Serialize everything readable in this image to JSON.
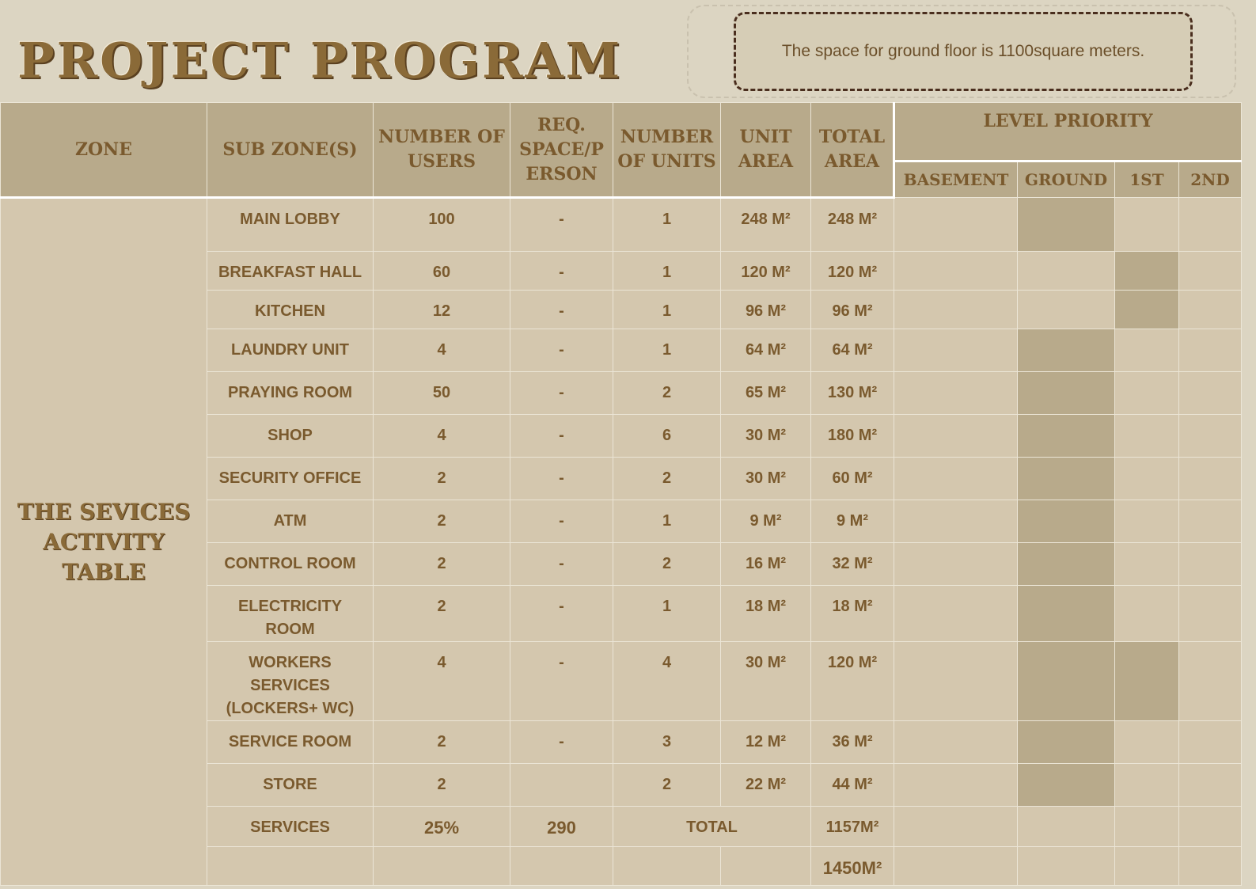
{
  "title": "PROJECT PROGRAM",
  "note": "The space for ground floor is 1100square meters.",
  "headers": {
    "zone": "ZONE",
    "sub_zone": "SUB ZONE(S)",
    "number_of_users": "NUMBER OF USERS",
    "req_space": "REQ. SPACE/P ERSON",
    "number_of_units": "NUMBER OF UNITS",
    "unit_area": "UNIT AREA",
    "total_area": "TOTAL AREA",
    "level_priority": "LEVEL PRIORITY",
    "levels": [
      "BASEMENT",
      "GROUND",
      "1ST",
      "2ND"
    ]
  },
  "zone_name": "THE SEVICES ACTIVITY TABLE",
  "colors": {
    "shade": "#b8aa8b",
    "cell": "#d4c7ae",
    "text": "#7a5a2e"
  },
  "rows": [
    {
      "sub": "MAIN LOBBY",
      "users": "100",
      "req": "-",
      "units": "1",
      "unit_area": "248 M²",
      "total": "248 M²",
      "levels": [
        "",
        "x",
        "",
        ""
      ]
    },
    {
      "sub": "BREAKFAST HALL",
      "users": "60",
      "req": "-",
      "units": "1",
      "unit_area": "120 M²",
      "total": "120 M²",
      "levels": [
        "",
        "",
        "x",
        ""
      ]
    },
    {
      "sub": "KITCHEN",
      "users": "12",
      "req": "-",
      "units": "1",
      "unit_area": "96 M²",
      "total": "96 M²",
      "levels": [
        "",
        "",
        "x",
        ""
      ]
    },
    {
      "sub": "LAUNDRY UNIT",
      "users": "4",
      "req": "-",
      "units": "1",
      "unit_area": "64 M²",
      "total": "64 M²",
      "levels": [
        "",
        "x",
        "",
        ""
      ]
    },
    {
      "sub": "PRAYING ROOM",
      "users": "50",
      "req": "-",
      "units": "2",
      "unit_area": "65 M²",
      "total": "130 M²",
      "levels": [
        "",
        "x",
        "",
        ""
      ]
    },
    {
      "sub": "SHOP",
      "users": "4",
      "req": "-",
      "units": "6",
      "unit_area": "30 M²",
      "total": "180 M²",
      "levels": [
        "",
        "x",
        "",
        ""
      ]
    },
    {
      "sub": "SECURITY OFFICE",
      "users": "2",
      "req": "-",
      "units": "2",
      "unit_area": "30 M²",
      "total": "60 M²",
      "levels": [
        "",
        "x",
        "",
        ""
      ]
    },
    {
      "sub": "ATM",
      "users": "2",
      "req": "-",
      "units": "1",
      "unit_area": "9 M²",
      "total": "9 M²",
      "levels": [
        "",
        "x",
        "",
        ""
      ]
    },
    {
      "sub": "CONTROL ROOM",
      "users": "2",
      "req": "-",
      "units": "2",
      "unit_area": "16 M²",
      "total": "32 M²",
      "levels": [
        "",
        "x",
        "",
        ""
      ]
    },
    {
      "sub": "ELECTRICITY ROOM",
      "users": "2",
      "req": "-",
      "units": "1",
      "unit_area": "18 M²",
      "total": "18 M²",
      "levels": [
        "",
        "x",
        "",
        ""
      ]
    },
    {
      "sub": "WORKERS SERVICES (LOCKERS+ WC)",
      "users": "4",
      "req": "-",
      "units": "4",
      "unit_area": "30 M²",
      "total": "120 M²",
      "levels": [
        "",
        "x",
        "x",
        ""
      ]
    },
    {
      "sub": "SERVICE ROOM",
      "users": "2",
      "req": "-",
      "units": "3",
      "unit_area": "12 M²",
      "total": "36 M²",
      "levels": [
        "",
        "x",
        "",
        ""
      ]
    },
    {
      "sub": "STORE",
      "users": "2",
      "req": "",
      "units": "2",
      "unit_area": "22 M²",
      "total": "44 M²",
      "levels": [
        "",
        "x",
        "",
        ""
      ]
    }
  ],
  "summary": {
    "label": "SERVICES",
    "percent": "25%",
    "value": "290",
    "total_label": "TOTAL",
    "total": "1157M²",
    "grand_total": "1450M²"
  }
}
